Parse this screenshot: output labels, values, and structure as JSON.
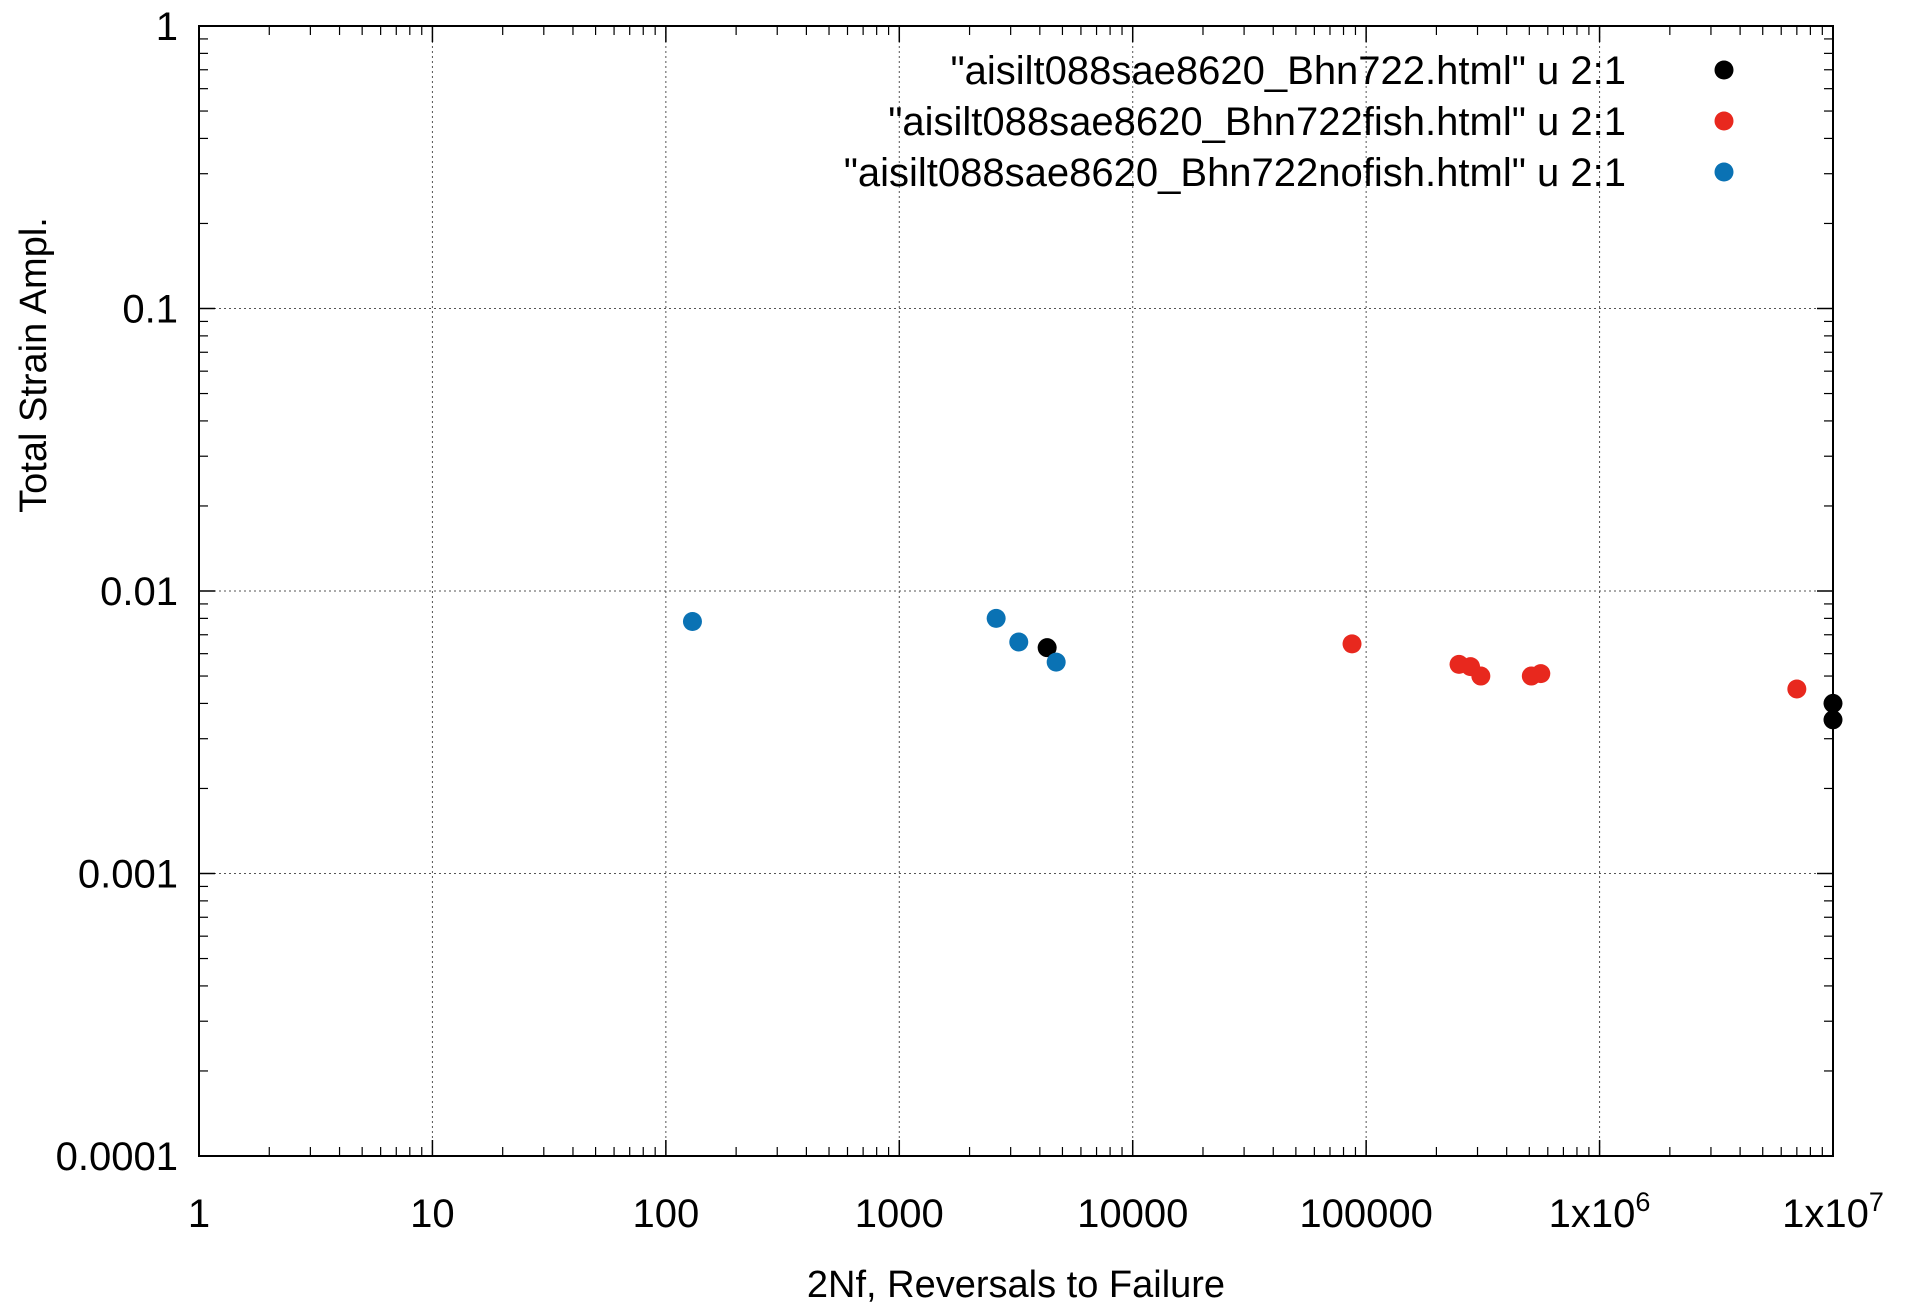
{
  "chart_data": {
    "type": "scatter",
    "title": "",
    "xlabel": "2Nf, Reversals to Failure",
    "ylabel": "Total Strain Ampl.",
    "x_scale": "log",
    "y_scale": "log",
    "xlim": [
      1,
      10000000
    ],
    "ylim": [
      0.0001,
      1
    ],
    "grid": true,
    "legend_position": "top-right",
    "x_ticks": [
      {
        "value": 1,
        "label": "1"
      },
      {
        "value": 10,
        "label": "10"
      },
      {
        "value": 100,
        "label": "100"
      },
      {
        "value": 1000,
        "label": "1000"
      },
      {
        "value": 10000,
        "label": "10000"
      },
      {
        "value": 100000,
        "label": "100000"
      },
      {
        "value": 1000000,
        "label": "1x10",
        "exp": "6"
      },
      {
        "value": 10000000,
        "label": "1x10",
        "exp": "7"
      }
    ],
    "y_ticks": [
      {
        "value": 0.0001,
        "label": "0.0001"
      },
      {
        "value": 0.001,
        "label": "0.001"
      },
      {
        "value": 0.01,
        "label": "0.01"
      },
      {
        "value": 0.1,
        "label": "0.1"
      },
      {
        "value": 1,
        "label": "1"
      }
    ],
    "series": [
      {
        "name": "\"aisilt088sae8620_Bhn722.html\" u 2:1",
        "color": "#000000",
        "points": [
          {
            "x": 4300,
            "y": 0.0063
          },
          {
            "x": 10000000,
            "y": 0.004
          },
          {
            "x": 10000000,
            "y": 0.0035
          }
        ]
      },
      {
        "name": "\"aisilt088sae8620_Bhn722fish.html\" u 2:1",
        "color": "#e8281e",
        "points": [
          {
            "x": 87000,
            "y": 0.0065
          },
          {
            "x": 250000,
            "y": 0.0055
          },
          {
            "x": 280000,
            "y": 0.0054
          },
          {
            "x": 310000,
            "y": 0.005
          },
          {
            "x": 510000,
            "y": 0.005
          },
          {
            "x": 560000,
            "y": 0.0051
          },
          {
            "x": 7000000,
            "y": 0.0045
          }
        ]
      },
      {
        "name": "\"aisilt088sae8620_Bhn722nofish.html\" u 2:1",
        "color": "#0a72b4",
        "points": [
          {
            "x": 130,
            "y": 0.0078
          },
          {
            "x": 2600,
            "y": 0.008
          },
          {
            "x": 3250,
            "y": 0.0066
          },
          {
            "x": 4700,
            "y": 0.0056
          }
        ]
      }
    ]
  }
}
